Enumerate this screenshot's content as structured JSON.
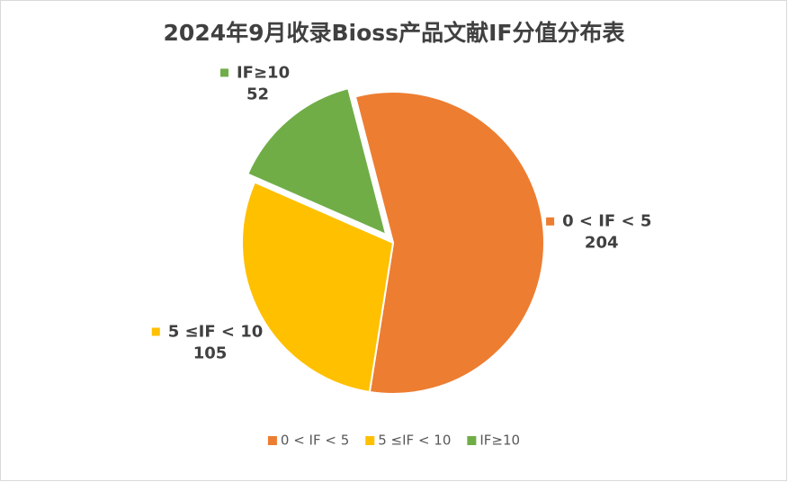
{
  "chart_data": {
    "type": "pie",
    "title": "2024年9月收录Bioss产品文献IF分值分布表",
    "categories": [
      "0 < IF < 5",
      "5 ≤IF < 10",
      "IF≥10"
    ],
    "values": [
      204,
      105,
      52
    ],
    "colors": [
      "#ED7D31",
      "#FFC000",
      "#70AD47"
    ],
    "legend": "bottom"
  }
}
